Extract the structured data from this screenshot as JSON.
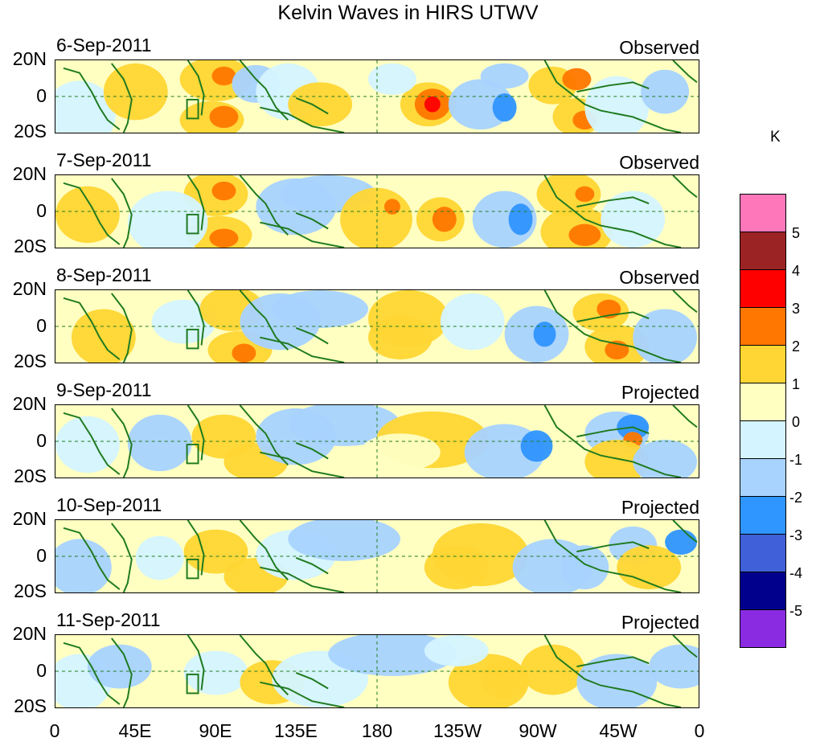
{
  "title": "Kelvin Waves in HIRS UTWV",
  "panels": [
    {
      "date": "6-Sep-2011",
      "status": "Observed"
    },
    {
      "date": "7-Sep-2011",
      "status": "Observed"
    },
    {
      "date": "8-Sep-2011",
      "status": "Observed"
    },
    {
      "date": "9-Sep-2011",
      "status": "Projected"
    },
    {
      "date": "10-Sep-2011",
      "status": "Projected"
    },
    {
      "date": "11-Sep-2011",
      "status": "Projected"
    }
  ],
  "lat_labels": [
    "20N",
    "0",
    "20S"
  ],
  "lon_labels": [
    "0",
    "45E",
    "90E",
    "135E",
    "180",
    "135W",
    "90W",
    "45W",
    "0"
  ],
  "colorbar": {
    "unit": "K",
    "colors": [
      "#ff77bb",
      "#9c2323",
      "#ff0000",
      "#ff7700",
      "#ffd633",
      "#ffffc2",
      "#d4f4ff",
      "#a8d3ff",
      "#2f95ff",
      "#3f60d8",
      "#00008c",
      "#8a2be2"
    ],
    "labels": [
      "5",
      "4",
      "3",
      "2",
      "1",
      "0",
      "-1",
      "-2",
      "-3",
      "-4",
      "-5"
    ]
  }
}
